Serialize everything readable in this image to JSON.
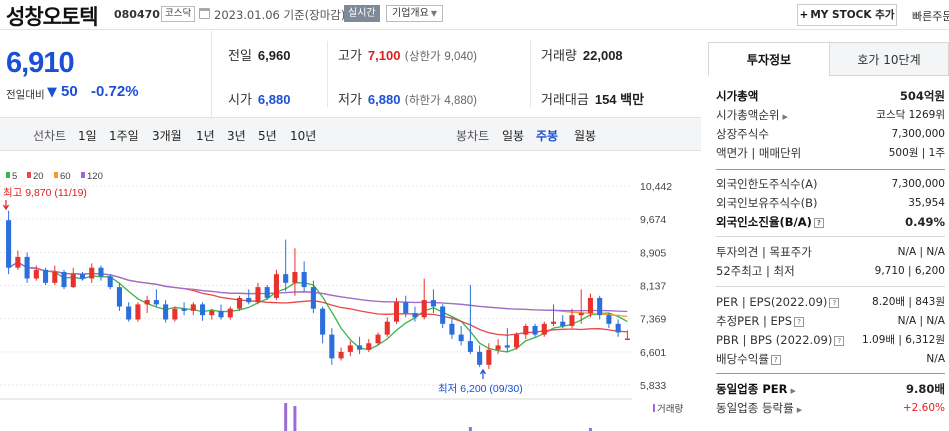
{
  "header": {
    "stock_name": "성창오토텍",
    "stock_code": "080470",
    "market": "코스닥",
    "date": "2023.01.06  기준(장마감)",
    "realtime_label": "실시간",
    "corp_label": "기업개요",
    "mystock_label": "MY STOCK 추가",
    "quick_order_label": "빠른주문"
  },
  "summary": {
    "price": "6,910",
    "change_label": "전일대비",
    "change_symbol": "▼",
    "change_value": "50",
    "change_pct": "-0.72%"
  },
  "quotes": {
    "prev_label": "전일",
    "prev": "6,960",
    "high_label": "고가",
    "high": "7,100",
    "upper_label": "(상한가",
    "upper": "9,040)",
    "volume_label": "거래량",
    "volume": "22,008",
    "open_label": "시가",
    "open": "6,880",
    "low_label": "저가",
    "low": "6,880",
    "lower_label": "(하한가",
    "lower": "4,880)",
    "amount_label": "거래대금",
    "amount": "154 백만"
  },
  "tabs": {
    "line_chart": "선차트",
    "periods": [
      "1일",
      "1주일",
      "3개월",
      "1년",
      "3년",
      "5년",
      "10년"
    ],
    "candle_chart": "봉차트",
    "candles": [
      "일봉",
      "주봉",
      "월봉"
    ],
    "active_candle": "주봉"
  },
  "chart_data": {
    "type": "candlestick",
    "legend": [
      {
        "name": "5",
        "color": "#3bb54a"
      },
      {
        "name": "20",
        "color": "#e8484b"
      },
      {
        "name": "60",
        "color": "#f39c2e"
      },
      {
        "name": "120",
        "color": "#9b6cd8"
      }
    ],
    "y_ticks": [
      "10,442",
      "9,674",
      "8,905",
      "8,137",
      "7,369",
      "6,601",
      "5,833"
    ],
    "ylim": [
      5833,
      10442
    ],
    "high_annotation": "최고 9,870 (11/19)",
    "low_annotation": "최저 6,200 (09/30)",
    "volume_label": "거래량",
    "colors": {
      "up": "#e8322d",
      "down": "#2a6fdb"
    },
    "candles": [
      [
        9650,
        9870,
        8400,
        8550
      ],
      [
        8550,
        8950,
        8500,
        8800
      ],
      [
        8800,
        8900,
        8200,
        8300
      ],
      [
        8300,
        8600,
        8250,
        8500
      ],
      [
        8500,
        8550,
        8150,
        8200
      ],
      [
        8200,
        8600,
        8150,
        8450
      ],
      [
        8450,
        8500,
        8050,
        8100
      ],
      [
        8100,
        8550,
        8080,
        8400
      ],
      [
        8400,
        8450,
        8250,
        8300
      ],
      [
        8300,
        8650,
        8200,
        8550
      ],
      [
        8550,
        8600,
        8250,
        8350
      ],
      [
        8350,
        8400,
        8050,
        8100
      ],
      [
        8100,
        8200,
        7550,
        7650
      ],
      [
        7650,
        7750,
        7300,
        7350
      ],
      [
        7350,
        7750,
        7300,
        7700
      ],
      [
        7700,
        7900,
        7500,
        7800
      ],
      [
        7800,
        8050,
        7650,
        7700
      ],
      [
        7700,
        7800,
        7280,
        7350
      ],
      [
        7350,
        7650,
        7300,
        7600
      ],
      [
        7600,
        7750,
        7450,
        7550
      ],
      [
        7550,
        7750,
        7450,
        7700
      ],
      [
        7700,
        7750,
        7320,
        7450
      ],
      [
        7450,
        7600,
        7350,
        7550
      ],
      [
        7550,
        7700,
        7350,
        7400
      ],
      [
        7400,
        7650,
        7350,
        7600
      ],
      [
        7600,
        7900,
        7550,
        7850
      ],
      [
        7850,
        8050,
        7700,
        7750
      ],
      [
        7750,
        8200,
        7700,
        8100
      ],
      [
        8100,
        8150,
        7800,
        7850
      ],
      [
        7850,
        8500,
        7800,
        8400
      ],
      [
        8400,
        9200,
        8000,
        8200
      ],
      [
        8200,
        9000,
        7900,
        8450
      ],
      [
        8450,
        8700,
        8000,
        8100
      ],
      [
        8100,
        8250,
        7500,
        7600
      ],
      [
        7600,
        7650,
        6800,
        7000
      ],
      [
        7000,
        7150,
        6300,
        6450
      ],
      [
        6450,
        6700,
        6400,
        6600
      ],
      [
        6600,
        6850,
        6500,
        6750
      ],
      [
        6750,
        6950,
        6550,
        6650
      ],
      [
        6650,
        6900,
        6600,
        6800
      ],
      [
        6800,
        7050,
        6750,
        7000
      ],
      [
        7000,
        7400,
        6950,
        7300
      ],
      [
        7300,
        7850,
        7250,
        7750
      ],
      [
        7750,
        7900,
        7400,
        7500
      ],
      [
        7500,
        7650,
        7300,
        7400
      ],
      [
        7400,
        8300,
        7350,
        7800
      ],
      [
        7800,
        8050,
        7500,
        7650
      ],
      [
        7650,
        7700,
        7150,
        7250
      ],
      [
        7250,
        7400,
        6900,
        7000
      ],
      [
        7000,
        7200,
        6750,
        6850
      ],
      [
        6850,
        8150,
        6550,
        6600
      ],
      [
        6600,
        6750,
        6250,
        6300
      ],
      [
        6300,
        6800,
        6200,
        6650
      ],
      [
        6650,
        6900,
        6550,
        6750
      ],
      [
        6750,
        7150,
        6600,
        6700
      ],
      [
        6700,
        7050,
        6650,
        7000
      ],
      [
        7000,
        7250,
        6900,
        7200
      ],
      [
        7200,
        7250,
        6950,
        7000
      ],
      [
        7000,
        7300,
        6950,
        7250
      ],
      [
        7250,
        7700,
        7200,
        7300
      ],
      [
        7300,
        7450,
        7150,
        7200
      ],
      [
        7200,
        7600,
        7150,
        7450
      ],
      [
        7450,
        8050,
        7250,
        7500
      ],
      [
        7500,
        7950,
        7400,
        7850
      ],
      [
        7850,
        7900,
        7350,
        7450
      ],
      [
        7450,
        7500,
        7150,
        7250
      ],
      [
        7250,
        7350,
        6950,
        7050
      ],
      [
        6880,
        7100,
        6880,
        6910
      ]
    ],
    "volume_spikes": [
      {
        "index": 30,
        "value": 28
      },
      {
        "index": 31,
        "value": 25
      },
      {
        "index": 50,
        "value": 4
      },
      {
        "index": 63,
        "value": 3
      }
    ]
  },
  "right_panel": {
    "tabs": [
      "투자정보",
      "호가 10단계"
    ],
    "rows": [
      {
        "k": "시가총액",
        "v": "504억원",
        "bold": true
      },
      {
        "k": "시가총액순위",
        "v": "코스닥 1269위",
        "caret": true
      },
      {
        "k": "상장주식수",
        "v": "7,300,000"
      },
      {
        "k": "액면가 | 매매단위",
        "v": "500원 | 1주"
      },
      {
        "k": "외국인한도주식수(A)",
        "v": "7,300,000"
      },
      {
        "k": "외국인보유주식수(B)",
        "v": "35,954"
      },
      {
        "k": "외국인소진율(B/A)",
        "v": "0.49%",
        "bold": true,
        "info": true
      },
      {
        "k": "투자의견 | 목표주가",
        "v": "N/A | N/A"
      },
      {
        "k": "52주최고 | 최저",
        "v": "9,710 | 6,200"
      },
      {
        "k": "PER | EPS(2022.09)",
        "v": "8.20배 | 843원",
        "info": true
      },
      {
        "k": "추정PER | EPS",
        "v": "N/A | N/A",
        "info": true
      },
      {
        "k": "PBR | BPS (2022.09)",
        "v": "1.09배 | 6,312원",
        "info": true
      },
      {
        "k": "배당수익률",
        "v": "N/A",
        "info": true
      },
      {
        "k": "동일업종 PER",
        "v": "9.80배",
        "bold": true,
        "caret": true
      },
      {
        "k": "동일업종 등락률",
        "v": "+2.60%",
        "red": true,
        "caret": true
      }
    ]
  }
}
